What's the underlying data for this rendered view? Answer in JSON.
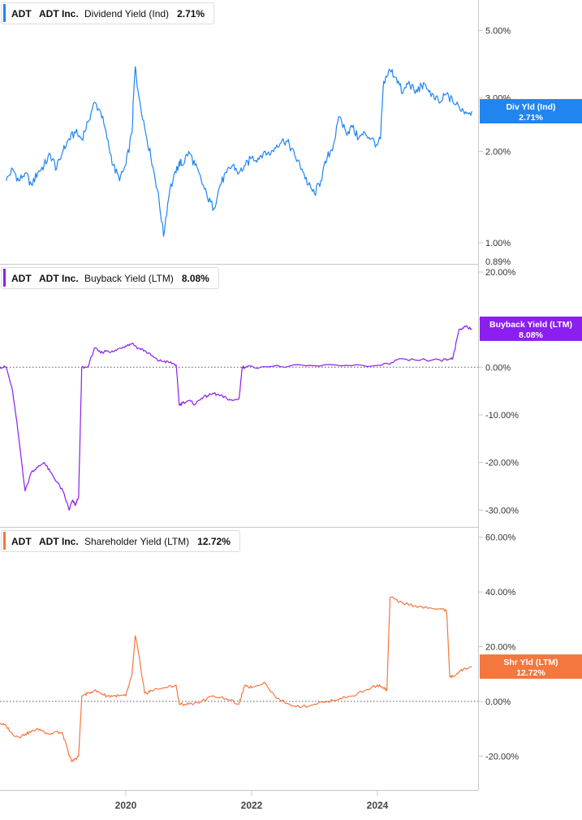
{
  "chart_data": [
    {
      "type": "line",
      "ticker": "ADT",
      "company": "ADT Inc.",
      "metric": "Dividend Yield (Ind)",
      "current_value": "2.71%",
      "badge": {
        "line1": "Div Yld (Ind)",
        "line2": "2.71%"
      },
      "color": "#2185f0",
      "scale": "log",
      "ylim": [
        0.89,
        5.5
      ],
      "yticks": [
        {
          "value": 1.0,
          "label": "1.00%"
        },
        {
          "value": 2.0,
          "label": "2.00%"
        },
        {
          "value": 3.0,
          "label": "3.00%"
        },
        {
          "value": 5.0,
          "label": "5.00%"
        }
      ],
      "ymin_label": "0.89%",
      "baseline": null,
      "x": [
        2018.1,
        2018.2,
        2018.3,
        2018.4,
        2018.5,
        2018.6,
        2018.7,
        2018.8,
        2018.9,
        2019.0,
        2019.1,
        2019.2,
        2019.3,
        2019.4,
        2019.5,
        2019.6,
        2019.7,
        2019.8,
        2019.9,
        2020.0,
        2020.1,
        2020.15,
        2020.2,
        2020.3,
        2020.4,
        2020.5,
        2020.6,
        2020.7,
        2020.8,
        2020.85,
        2020.9,
        2021.0,
        2021.1,
        2021.2,
        2021.3,
        2021.4,
        2021.5,
        2021.6,
        2021.7,
        2021.8,
        2021.9,
        2022.0,
        2022.1,
        2022.2,
        2022.3,
        2022.4,
        2022.5,
        2022.6,
        2022.7,
        2022.8,
        2022.9,
        2023.0,
        2023.1,
        2023.2,
        2023.3,
        2023.4,
        2023.5,
        2023.6,
        2023.7,
        2023.8,
        2023.9,
        2024.0,
        2024.05,
        2024.1,
        2024.2,
        2024.3,
        2024.4,
        2024.5,
        2024.6,
        2024.7,
        2024.8,
        2024.9,
        2025.0,
        2025.1,
        2025.2,
        2025.3,
        2025.4,
        2025.5
      ],
      "values": [
        1.6,
        1.75,
        1.6,
        1.7,
        1.55,
        1.7,
        1.8,
        1.95,
        1.75,
        2.0,
        2.2,
        2.3,
        2.2,
        2.5,
        2.9,
        2.7,
        2.2,
        1.8,
        1.6,
        1.8,
        2.3,
        3.8,
        3.1,
        2.4,
        1.9,
        1.5,
        1.05,
        1.5,
        1.7,
        1.85,
        1.8,
        2.0,
        1.8,
        1.6,
        1.4,
        1.3,
        1.55,
        1.7,
        1.8,
        1.7,
        1.8,
        1.9,
        1.9,
        2.0,
        1.95,
        2.1,
        2.2,
        2.1,
        1.9,
        1.75,
        1.55,
        1.45,
        1.6,
        1.9,
        2.1,
        2.6,
        2.3,
        2.4,
        2.2,
        2.3,
        2.2,
        2.1,
        2.2,
        3.4,
        3.7,
        3.5,
        3.1,
        3.4,
        3.1,
        3.3,
        3.2,
        3.0,
        2.9,
        3.1,
        2.9,
        2.8,
        2.7,
        2.71
      ]
    },
    {
      "type": "line",
      "ticker": "ADT",
      "company": "ADT Inc.",
      "metric": "Buyback Yield (LTM)",
      "current_value": "8.08%",
      "badge": {
        "line1": "Buyback Yield (LTM)",
        "line2": "8.08%"
      },
      "color": "#8a1fef",
      "scale": "linear",
      "ylim": [
        -32,
        20
      ],
      "yticks": [
        {
          "value": 20,
          "label": "20.00%"
        },
        {
          "value": 10,
          "label": "10.00%"
        },
        {
          "value": 0,
          "label": "0.00%"
        },
        {
          "value": -10,
          "label": "-10.00%"
        },
        {
          "value": -20,
          "label": "-20.00%"
        },
        {
          "value": -30,
          "label": "-30.00%"
        }
      ],
      "baseline": 0,
      "x": [
        2018.0,
        2018.1,
        2018.2,
        2018.3,
        2018.4,
        2018.5,
        2018.6,
        2018.7,
        2018.8,
        2018.9,
        2019.0,
        2019.1,
        2019.15,
        2019.2,
        2019.25,
        2019.3,
        2019.4,
        2019.5,
        2019.6,
        2019.7,
        2019.8,
        2019.9,
        2020.0,
        2020.1,
        2020.2,
        2020.3,
        2020.4,
        2020.5,
        2020.6,
        2020.7,
        2020.8,
        2020.85,
        2020.9,
        2021.0,
        2021.1,
        2021.2,
        2021.3,
        2021.4,
        2021.5,
        2021.6,
        2021.7,
        2021.8,
        2021.85,
        2021.9,
        2022.2,
        2022.6,
        2023.0,
        2023.5,
        2024.0,
        2024.2,
        2024.3,
        2024.6,
        2025.0,
        2025.1,
        2025.15,
        2025.2,
        2025.3,
        2025.4,
        2025.5
      ],
      "values": [
        0,
        0,
        -5,
        -15,
        -26,
        -22,
        -21,
        -20,
        -22,
        -24,
        -26,
        -30,
        -28,
        -29,
        -27,
        0,
        0,
        4,
        3,
        3.5,
        3.2,
        4,
        4.5,
        5,
        4,
        3.5,
        2.5,
        1.5,
        1.2,
        1,
        0.5,
        -8,
        -7.5,
        -7,
        -7.8,
        -6.5,
        -6,
        -5.5,
        -6,
        -6.5,
        -7,
        -6.6,
        0,
        0,
        0.1,
        0.2,
        0.3,
        0.4,
        0.4,
        0.6,
        1.5,
        1.5,
        1.5,
        1.5,
        1.8,
        2,
        8,
        8.5,
        8.08
      ]
    },
    {
      "type": "line",
      "ticker": "ADT",
      "company": "ADT Inc.",
      "metric": "Shareholder Yield (LTM)",
      "current_value": "12.72%",
      "badge": {
        "line1": "Shr Yld (LTM)",
        "line2": "12.72%"
      },
      "color": "#f4773e",
      "scale": "linear",
      "ylim": [
        -30,
        62
      ],
      "yticks": [
        {
          "value": 60,
          "label": "60.00%"
        },
        {
          "value": 40,
          "label": "40.00%"
        },
        {
          "value": 20,
          "label": "20.00%"
        },
        {
          "value": 0,
          "label": "0.00%"
        },
        {
          "value": -20,
          "label": "-20.00%"
        }
      ],
      "baseline": 0,
      "x": [
        2018.0,
        2018.1,
        2018.2,
        2018.3,
        2018.4,
        2018.5,
        2018.6,
        2018.7,
        2018.8,
        2018.9,
        2019.0,
        2019.1,
        2019.15,
        2019.2,
        2019.25,
        2019.3,
        2019.4,
        2019.5,
        2019.6,
        2019.7,
        2019.8,
        2019.9,
        2020.0,
        2020.1,
        2020.15,
        2020.2,
        2020.3,
        2020.35,
        2020.4,
        2020.6,
        2020.8,
        2020.85,
        2020.9,
        2021.0,
        2021.2,
        2021.4,
        2021.6,
        2021.8,
        2021.85,
        2021.9,
        2022.0,
        2022.2,
        2022.4,
        2022.6,
        2022.8,
        2023.0,
        2023.2,
        2023.4,
        2023.6,
        2023.8,
        2024.0,
        2024.1,
        2024.15,
        2024.2,
        2024.4,
        2024.6,
        2024.8,
        2025.0,
        2025.1,
        2025.15,
        2025.2,
        2025.3,
        2025.4,
        2025.5
      ],
      "values": [
        -8,
        -9,
        -12,
        -13,
        -12,
        -11,
        -10,
        -11,
        -12,
        -11,
        -12,
        -20,
        -22,
        -21,
        -20,
        2,
        3,
        4,
        3,
        2,
        2,
        2,
        2,
        10,
        24,
        18,
        3,
        3,
        4,
        5,
        6,
        -1,
        -1,
        -1,
        0,
        2,
        1,
        -1,
        3,
        6,
        5,
        7,
        1,
        -1,
        -2,
        -1,
        0,
        1,
        2,
        4,
        6,
        5,
        4,
        38,
        36,
        35,
        34,
        34,
        33,
        9,
        9,
        11,
        12,
        12.72
      ]
    }
  ],
  "x_axis": {
    "ticks": [
      {
        "value": 2020,
        "label": "2020"
      },
      {
        "value": 2022,
        "label": "2022"
      },
      {
        "value": 2024,
        "label": "2024"
      }
    ],
    "range": [
      2018.0,
      2025.6
    ]
  }
}
